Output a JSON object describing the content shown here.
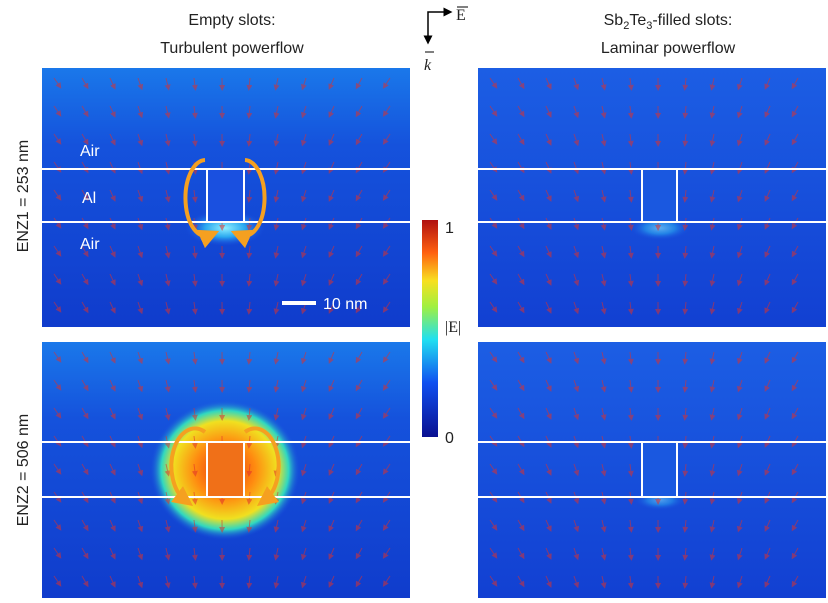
{
  "header": {
    "left_title": [
      "Empty slots:",
      "Turbulent powerflow"
    ],
    "right_title": {
      "line1": [
        "Sb",
        "2",
        "Te",
        "3",
        "-filled slots:"
      ],
      "line2": "Laminar powerflow"
    },
    "e_symbol": "E",
    "k_symbol": "k"
  },
  "rows": [
    {
      "label": "ENZ1 = 253 nm"
    },
    {
      "label": "ENZ2 = 506 nm"
    }
  ],
  "materials": [
    "Air",
    "Al",
    "Air"
  ],
  "scale_bar": "10 nm",
  "colorbar": {
    "label": "|E|",
    "max": "1",
    "min": "0"
  }
}
